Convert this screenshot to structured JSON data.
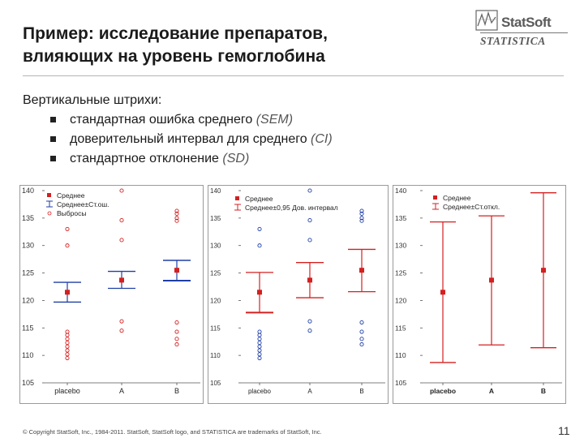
{
  "header": {
    "title_line1": "Пример: исследование препаратов,",
    "title_line2": "влияющих на уровень гемоглобина"
  },
  "logo": {
    "name": "StatSoft",
    "product": "STATISTICA"
  },
  "intro": {
    "heading": "Вертикальные штрихи:",
    "items": [
      {
        "text": "стандартная ошибка среднего",
        "abbr": "(SEM)"
      },
      {
        "text": "доверительный интервал для среднего",
        "abbr": "(CI)"
      },
      {
        "text": "стандартное отклонение",
        "abbr": "(SD)"
      }
    ]
  },
  "footer": {
    "copyright": "© Copyright StatSoft, Inc., 1984-2011. StatSoft, StatSoft logo, and STATISTICA are trademarks of StatSoft, Inc.",
    "page": "11"
  },
  "colors": {
    "blue": "#1f3fa6",
    "red": "#d42020",
    "axis": "#333333"
  },
  "chart_data": [
    {
      "type": "scatter",
      "title": "",
      "categories": [
        "placebo",
        "A",
        "B"
      ],
      "ylim": [
        105,
        140
      ],
      "yticks": [
        105,
        110,
        115,
        120,
        125,
        130,
        135,
        140
      ],
      "legend": [
        "Среднее",
        "Среднее±Ст.ош.",
        "Выбросы"
      ],
      "legend_position": "top-left",
      "whisker_color": "blue",
      "means": [
        121.5,
        123.7,
        125.5
      ],
      "lower": [
        119.7,
        122.2,
        123.6
      ],
      "upper": [
        123.3,
        125.3,
        127.3
      ],
      "outliers": [
        [
          109.5,
          110.2,
          110.9,
          111.6,
          112.3,
          113.0,
          113.7,
          114.3,
          133.0,
          130.0
        ],
        [
          114.5,
          116.2,
          131.0,
          134.6,
          140.0
        ],
        [
          112.0,
          113.0,
          114.3,
          116.0,
          134.5,
          135.0,
          135.8,
          136.3
        ]
      ]
    },
    {
      "type": "scatter",
      "title": "",
      "categories": [
        "placebo",
        "A",
        "B"
      ],
      "ylim": [
        105,
        140
      ],
      "yticks": [
        105,
        110,
        115,
        120,
        125,
        130,
        135,
        140
      ],
      "legend": [
        "Среднее",
        "Среднее±0,95 Дов. интервал"
      ],
      "legend_position": "top",
      "whisker_color": "red",
      "means": [
        121.5,
        123.7,
        125.5
      ],
      "lower": [
        117.8,
        120.5,
        121.6
      ],
      "upper": [
        125.1,
        126.9,
        129.3
      ],
      "outliers": [
        [
          109.5,
          110.2,
          110.9,
          111.6,
          112.3,
          113.0,
          113.7,
          114.3,
          133.0,
          130.0
        ],
        [
          114.5,
          116.2,
          131.0,
          134.6,
          140.0
        ],
        [
          112.0,
          113.0,
          114.3,
          116.0,
          134.5,
          135.0,
          135.8,
          136.3
        ]
      ]
    },
    {
      "type": "scatter",
      "title": "",
      "categories": [
        "placebo",
        "A",
        "B"
      ],
      "ylim": [
        105,
        140
      ],
      "yticks": [
        105,
        110,
        115,
        120,
        125,
        130,
        135,
        140
      ],
      "legend": [
        "Среднее",
        "Среднее±Ст.откл."
      ],
      "legend_position": "top",
      "whisker_color": "red",
      "means": [
        121.5,
        123.7,
        125.5
      ],
      "lower": [
        108.7,
        111.9,
        111.4
      ],
      "upper": [
        134.3,
        135.4,
        139.6
      ],
      "outliers": []
    }
  ]
}
